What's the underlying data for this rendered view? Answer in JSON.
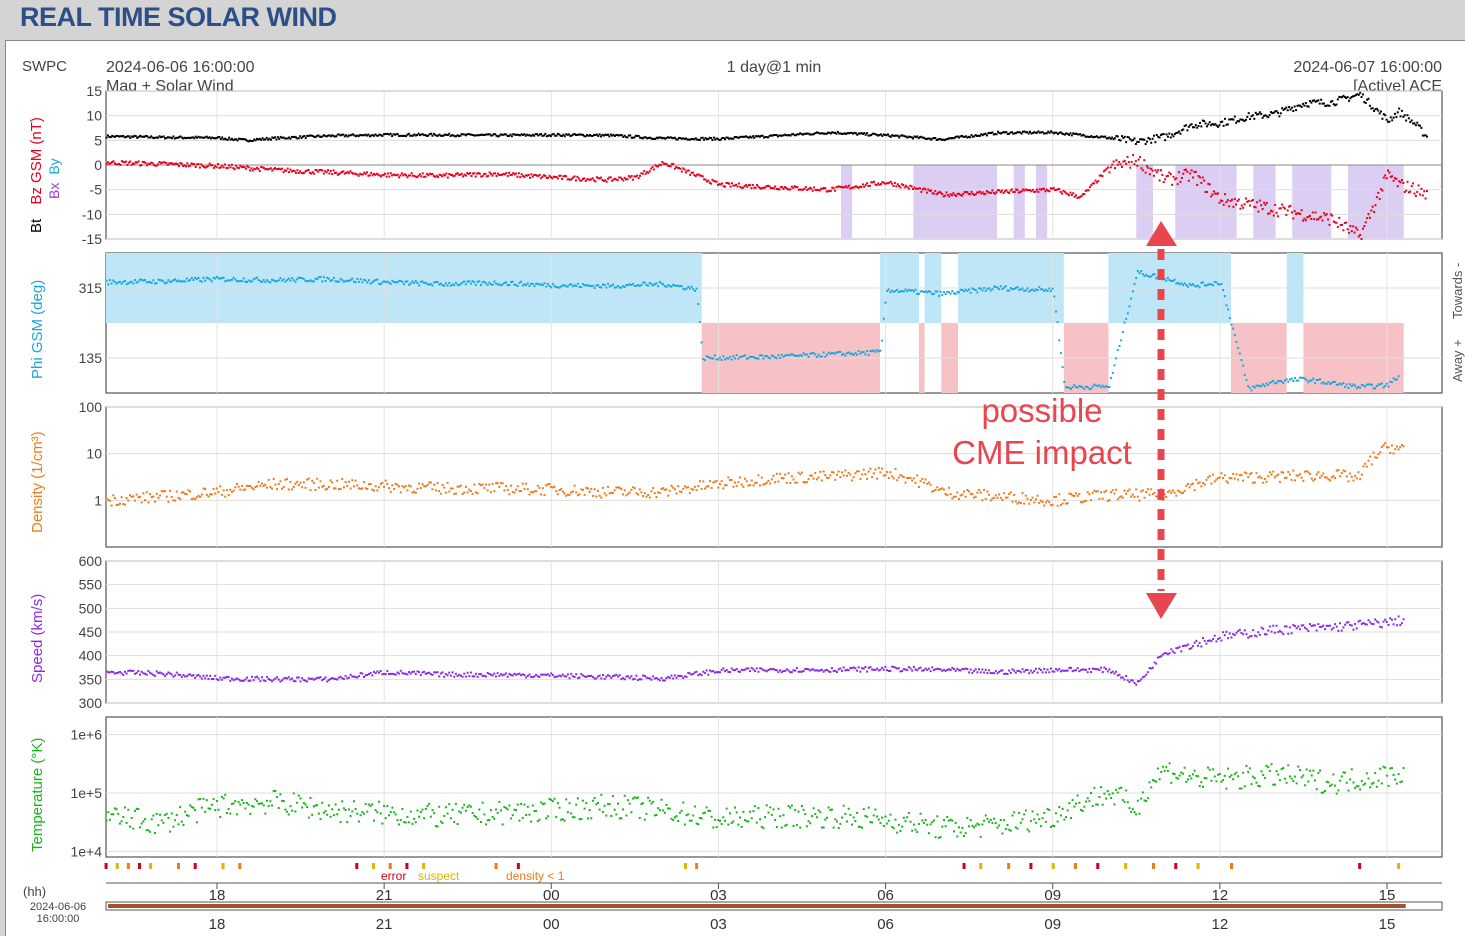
{
  "page_title": "REAL TIME SOLAR WIND",
  "header": {
    "source": "SWPC",
    "start_time": "2024-06-06 16:00:00",
    "subtitle": "Mag + Solar Wind",
    "span": "1 day@1 min",
    "end_time": "2024-06-07 16:00:00",
    "status": "[Active] ACE"
  },
  "annotation": {
    "line1": "possible",
    "line2": "CME impact"
  },
  "flags_legend": {
    "error": "error",
    "suspect": "suspect",
    "density": "density  < 1"
  },
  "time_axis": {
    "unit_label": "(hh)",
    "start_label_date": "2024-06-06",
    "start_label_time": "16:00:00",
    "ticks": [
      {
        "t": 2,
        "label": "18"
      },
      {
        "t": 5,
        "label": "21"
      },
      {
        "t": 8,
        "label": "00"
      },
      {
        "t": 11,
        "label": "03"
      },
      {
        "t": 14,
        "label": "06"
      },
      {
        "t": 17,
        "label": "09"
      },
      {
        "t": 20,
        "label": "12"
      },
      {
        "t": 23,
        "label": "15"
      }
    ]
  },
  "colors": {
    "bt": "#000000",
    "bz": "#e8001c",
    "phi": "#1aa8dc",
    "density": "#f07a1a",
    "speed": "#8a2be2",
    "temperature": "#19b419",
    "away": "#f7c2c6",
    "towards": "#bfe6f7",
    "bx": "#9a3bd6",
    "south_shade": "#dccdf2",
    "annotation": "#e8454f",
    "error": "#d0001c",
    "suspect": "#e0b400",
    "density_flag": "#f07a1a"
  },
  "chart_data": [
    {
      "type": "line",
      "ylabel_parts": [
        "Bt",
        "Bx",
        "By",
        "Bz GSM (nT)"
      ],
      "ylim": [
        -15,
        15
      ],
      "yticks": [
        "15",
        "10",
        "5",
        "0",
        "-5",
        "-10",
        "-15"
      ],
      "x_unit": "hours since 2024-06-06 16:00",
      "series": [
        {
          "name": "Bt",
          "x": [
            0,
            1,
            2,
            2.5,
            3,
            4,
            5,
            6,
            7,
            8,
            9,
            10,
            11,
            12,
            13,
            14,
            15,
            16,
            17,
            18,
            18.5,
            19,
            19.5,
            20,
            20.5,
            21,
            21.5,
            22,
            22.5,
            23,
            23.2,
            23.5,
            23.7
          ],
          "values": [
            5.8,
            5.6,
            5.5,
            5,
            5.4,
            5.9,
            6.1,
            6.1,
            6,
            6.1,
            6,
            5.4,
            5.3,
            5.9,
            6.6,
            6,
            5.2,
            6.5,
            6.6,
            5.5,
            4.7,
            5.7,
            8.2,
            8.5,
            9.8,
            10.4,
            12.5,
            12.7,
            14.3,
            9,
            10.8,
            8.2,
            5.7
          ]
        },
        {
          "name": "Bz",
          "x": [
            0,
            1,
            2,
            3,
            4,
            5,
            6,
            7,
            8,
            9,
            9.5,
            10,
            11,
            12,
            13,
            14,
            15,
            16,
            17,
            17.5,
            18,
            18.5,
            19,
            19.5,
            20,
            20.5,
            21,
            21.5,
            22,
            22.5,
            23,
            23.2,
            23.5,
            23.7
          ],
          "values": [
            0.5,
            0.2,
            -0.2,
            -1,
            -1.5,
            -2,
            -2.2,
            -1.8,
            -2.5,
            -3,
            -2.5,
            0.5,
            -4,
            -4.5,
            -5,
            -3.5,
            -6,
            -5.5,
            -5,
            -6.5,
            -0.5,
            1,
            -3,
            -2,
            -7,
            -8,
            -9,
            -10,
            -11,
            -14.5,
            -2,
            -4,
            -5,
            -6
          ]
        }
      ],
      "shaded_south_bz_hours": [
        [
          13.2,
          13.4
        ],
        [
          14.5,
          16
        ],
        [
          16.3,
          16.5
        ],
        [
          16.7,
          16.9
        ],
        [
          18.5,
          18.8
        ],
        [
          19.2,
          20.3
        ],
        [
          20.6,
          21
        ],
        [
          21.3,
          22
        ],
        [
          22.3,
          23.3
        ]
      ]
    },
    {
      "type": "scatter",
      "ylabel": "Phi GSM (deg)",
      "ylim": [
        45,
        405
      ],
      "yticks": [
        "315",
        "135"
      ],
      "right_labels": [
        "Towards -",
        "Away +"
      ],
      "away_blocks_hours": [
        [
          10.7,
          13.9
        ],
        [
          14.6,
          14.7
        ],
        [
          15,
          15.3
        ],
        [
          17.2,
          18
        ],
        [
          20.2,
          21.2
        ],
        [
          21.5,
          23.3
        ]
      ],
      "series": [
        {
          "name": "Phi",
          "x": [
            0,
            1,
            2,
            3,
            4,
            5,
            6,
            7,
            8,
            9,
            10,
            10.6,
            10.7,
            12,
            13.9,
            14,
            15,
            16,
            17,
            17.2,
            18,
            18.5,
            19,
            19.5,
            20,
            20.5,
            21,
            21.5,
            22,
            22.5,
            23,
            23.2
          ],
          "values": [
            330,
            332,
            338,
            335,
            338,
            330,
            325,
            328,
            322,
            320,
            325,
            312,
            135,
            138,
            150,
            310,
            300,
            315,
            310,
            60,
            62,
            355,
            340,
            320,
            330,
            55,
            75,
            80,
            70,
            60,
            65,
            90
          ]
        }
      ]
    },
    {
      "type": "scatter",
      "ylabel": "Density (1/cm³)",
      "scale": "log",
      "ylim": [
        0.1,
        100
      ],
      "yticks": [
        "100",
        "10",
        "1"
      ],
      "series": [
        {
          "name": "Density",
          "x": [
            0,
            1,
            2,
            3,
            4,
            5,
            6,
            7,
            8,
            9,
            10,
            11,
            12,
            13,
            14,
            15,
            16,
            17,
            18,
            19,
            20,
            21,
            22,
            22.5,
            23,
            23.3
          ],
          "values": [
            1,
            1.2,
            1.5,
            2.2,
            2.2,
            2,
            1.8,
            1.8,
            1.7,
            1.5,
            1.5,
            2.2,
            3,
            3.2,
            4,
            1.5,
            1.2,
            1,
            1.3,
            1.3,
            3,
            3.2,
            3.5,
            3,
            14,
            12
          ]
        }
      ]
    },
    {
      "type": "scatter",
      "ylabel": "Speed (km/s)",
      "ylim": [
        300,
        600
      ],
      "yticks": [
        "600",
        "550",
        "500",
        "450",
        "400",
        "350",
        "300"
      ],
      "series": [
        {
          "name": "Speed",
          "x": [
            0,
            1,
            2,
            3,
            4,
            5,
            6,
            7,
            8,
            9,
            10,
            11,
            12,
            13,
            14,
            15,
            16,
            17,
            18,
            18.5,
            19,
            19.5,
            20,
            21,
            22,
            23,
            23.3
          ],
          "values": [
            365,
            362,
            352,
            350,
            350,
            365,
            360,
            360,
            358,
            355,
            352,
            368,
            370,
            370,
            372,
            370,
            365,
            370,
            370,
            340,
            410,
            425,
            440,
            455,
            460,
            470,
            475
          ]
        }
      ]
    },
    {
      "type": "scatter",
      "ylabel": "Temperature (°K)",
      "scale": "log",
      "ylim": [
        8000,
        2000000
      ],
      "yticks": [
        "1e+6",
        "1e+5",
        "1e+4"
      ],
      "series": [
        {
          "name": "Temperature",
          "x": [
            0,
            1,
            2,
            3,
            4,
            5,
            6,
            7,
            8,
            9,
            10,
            11,
            12,
            13,
            14,
            15,
            16,
            17,
            18,
            18.5,
            19,
            19.5,
            20,
            21,
            22,
            23,
            23.3
          ],
          "values": [
            40000,
            30000,
            60000,
            70000,
            50000,
            45000,
            40000,
            45000,
            50000,
            60000,
            50000,
            35000,
            40000,
            40000,
            35000,
            25000,
            28000,
            40000,
            100000,
            50000,
            250000,
            180000,
            170000,
            200000,
            150000,
            200000,
            220000
          ]
        }
      ]
    }
  ]
}
